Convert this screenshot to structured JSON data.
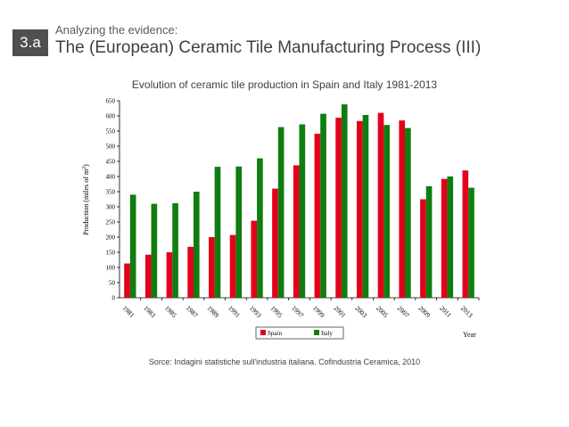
{
  "header": {
    "badge": "3.a",
    "subtitle": "Analyzing the evidence:",
    "title": "The (European) Ceramic Tile Manufacturing Process (III)"
  },
  "source_note": "Sorce: Indagini statistiche sull'industria italiana. Cofindustria Ceramica, 2010",
  "colors": {
    "spain": "#e3001b",
    "italy": "#0f7d0f"
  },
  "chart_data": {
    "type": "bar",
    "title": "Evolution of ceramic tile production in Spain and Italy 1981-2013",
    "xlabel": "Year",
    "ylabel": "Production (miles of m²)",
    "ylim": [
      0,
      650
    ],
    "yticks": [
      0,
      50,
      100,
      150,
      200,
      250,
      300,
      350,
      400,
      450,
      500,
      550,
      600,
      650
    ],
    "categories": [
      "1981",
      "1983",
      "1985",
      "1987",
      "1989",
      "1991",
      "1993",
      "1995",
      "1997",
      "1999",
      "2001",
      "2003",
      "2005",
      "2007",
      "2009",
      "2011",
      "2013"
    ],
    "series": [
      {
        "name": "Spain",
        "values": [
          113,
          142,
          150,
          168,
          200,
          207,
          254,
          360,
          437,
          541,
          594,
          583,
          610,
          585,
          325,
          392,
          420
        ]
      },
      {
        "name": "Italy",
        "values": [
          340,
          310,
          312,
          350,
          432,
          433,
          460,
          563,
          572,
          607,
          638,
          603,
          570,
          560,
          368,
          400,
          363
        ]
      }
    ],
    "legend": "bottom",
    "grid": false
  }
}
